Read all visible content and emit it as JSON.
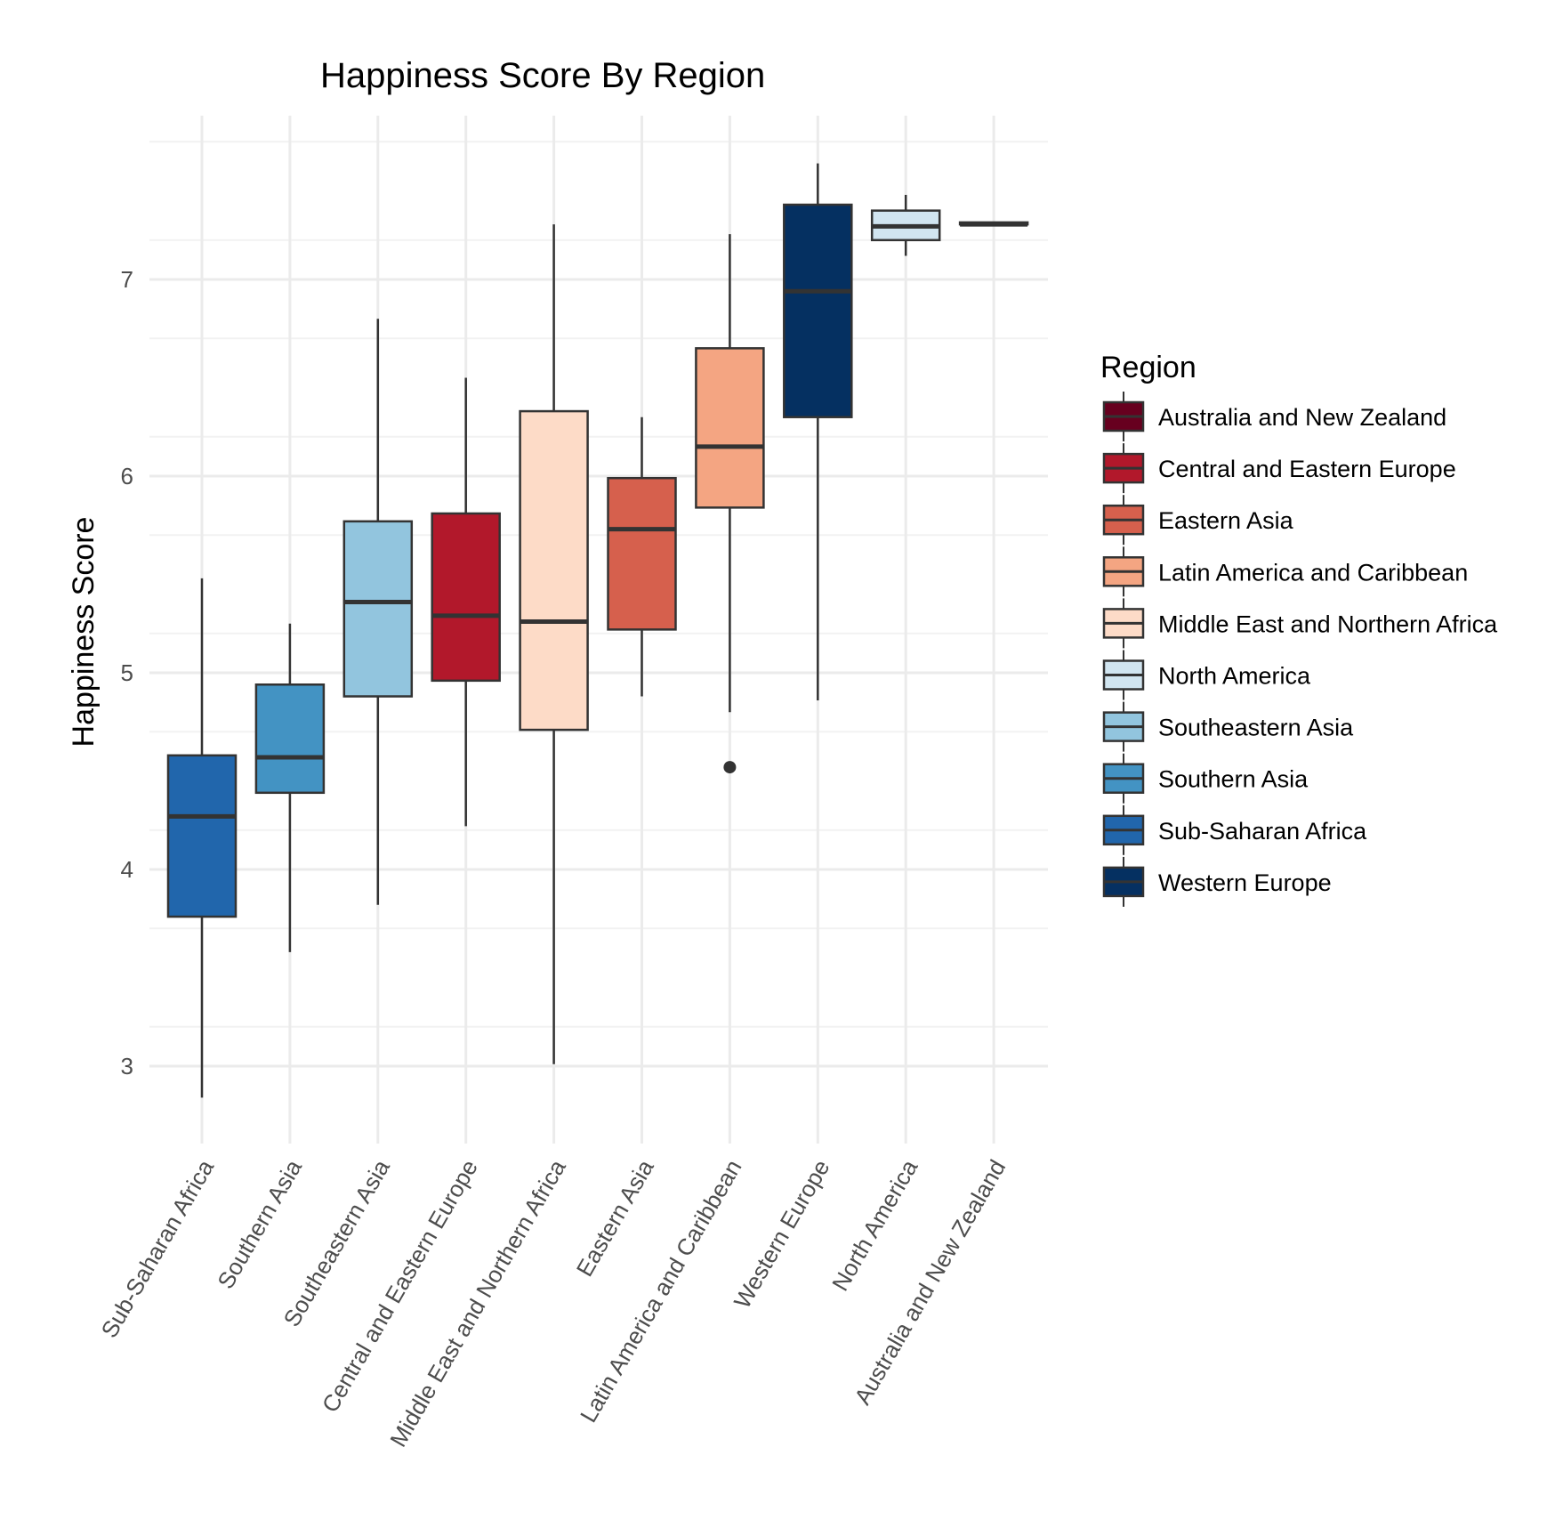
{
  "chart_data": {
    "type": "box",
    "title": "Happiness Score By Region",
    "xlabel": "",
    "ylabel": "Happiness Score",
    "ylim": [
      2.7,
      7.7
    ],
    "yticks": [
      3,
      4,
      5,
      6,
      7
    ],
    "grid": true,
    "legend": {
      "title": "Region",
      "position": "right",
      "entries": [
        {
          "label": "Australia and New Zealand",
          "color": "#67001F"
        },
        {
          "label": "Central and Eastern Europe",
          "color": "#B2182B"
        },
        {
          "label": "Eastern Asia",
          "color": "#D6604D"
        },
        {
          "label": "Latin America and Caribbean",
          "color": "#F4A582"
        },
        {
          "label": "Middle East and Northern Africa",
          "color": "#FDDBC7"
        },
        {
          "label": "North America",
          "color": "#D1E5F0"
        },
        {
          "label": "Southeastern Asia",
          "color": "#92C5DE"
        },
        {
          "label": "Southern Asia",
          "color": "#4393C3"
        },
        {
          "label": "Sub-Saharan Africa",
          "color": "#2166AC"
        },
        {
          "label": "Western Europe",
          "color": "#053061"
        }
      ]
    },
    "categories": [
      "Sub-Saharan Africa",
      "Southern Asia",
      "Southeastern Asia",
      "Central and Eastern Europe",
      "Middle East and Northern Africa",
      "Eastern Asia",
      "Latin America and Caribbean",
      "Western Europe",
      "North America",
      "Australia and New Zealand"
    ],
    "boxes": [
      {
        "category": "Sub-Saharan Africa",
        "min": 2.84,
        "q1": 3.76,
        "median": 4.27,
        "q3": 4.58,
        "max": 5.48,
        "outliers": [],
        "color": "#2166AC"
      },
      {
        "category": "Southern Asia",
        "min": 3.58,
        "q1": 4.39,
        "median": 4.57,
        "q3": 4.94,
        "max": 5.25,
        "outliers": [],
        "color": "#4393C3"
      },
      {
        "category": "Southeastern Asia",
        "min": 3.82,
        "q1": 4.88,
        "median": 5.36,
        "q3": 5.77,
        "max": 6.8,
        "outliers": [],
        "color": "#92C5DE"
      },
      {
        "category": "Central and Eastern Europe",
        "min": 4.22,
        "q1": 4.96,
        "median": 5.29,
        "q3": 5.81,
        "max": 6.5,
        "outliers": [],
        "color": "#B2182B"
      },
      {
        "category": "Middle East and Northern Africa",
        "min": 3.01,
        "q1": 4.71,
        "median": 5.26,
        "q3": 6.33,
        "max": 7.28,
        "outliers": [],
        "color": "#FDDBC7"
      },
      {
        "category": "Eastern Asia",
        "min": 4.88,
        "q1": 5.22,
        "median": 5.73,
        "q3": 5.99,
        "max": 6.3,
        "outliers": [],
        "color": "#D6604D"
      },
      {
        "category": "Latin America and Caribbean",
        "min": 4.8,
        "q1": 5.84,
        "median": 6.15,
        "q3": 6.65,
        "max": 7.23,
        "outliers": [
          4.52
        ],
        "color": "#F4A582"
      },
      {
        "category": "Western Europe",
        "min": 4.86,
        "q1": 6.3,
        "median": 6.94,
        "q3": 7.38,
        "max": 7.59,
        "outliers": [],
        "color": "#053061"
      },
      {
        "category": "North America",
        "min": 7.12,
        "q1": 7.2,
        "median": 7.27,
        "q3": 7.35,
        "max": 7.43,
        "outliers": [],
        "color": "#D1E5F0"
      },
      {
        "category": "Australia and New Zealand",
        "min": 7.28,
        "q1": 7.28,
        "median": 7.28,
        "q3": 7.29,
        "max": 7.29,
        "outliers": [],
        "color": "#67001F"
      }
    ]
  }
}
